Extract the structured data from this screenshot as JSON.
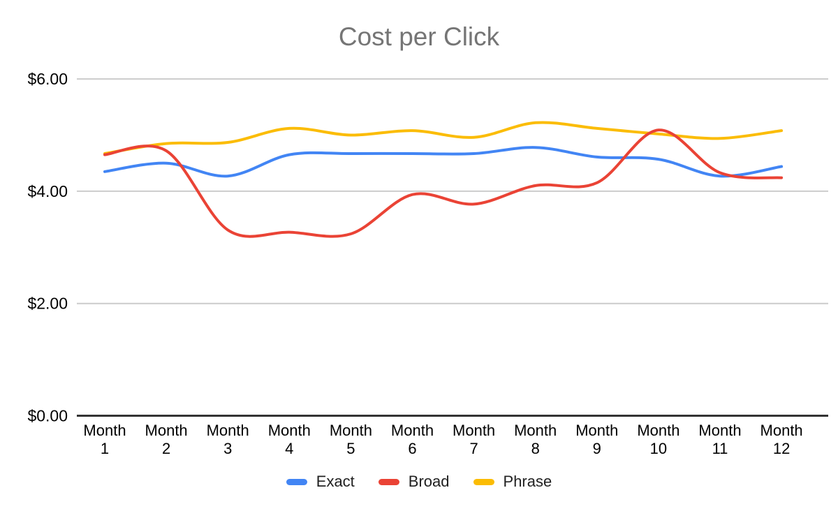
{
  "chart_data": {
    "type": "line",
    "title": "Cost per Click",
    "title_color": "#757575",
    "xlabel": "",
    "ylabel": "",
    "ylim": [
      0,
      6
    ],
    "grid": true,
    "smooth": true,
    "legend_position": "bottom",
    "categories": [
      "Month 1",
      "Month 2",
      "Month 3",
      "Month 4",
      "Month 5",
      "Month 6",
      "Month 7",
      "Month 8",
      "Month 9",
      "Month 10",
      "Month 11",
      "Month 12"
    ],
    "y_ticks": [
      {
        "label": "$0.00",
        "value": 0
      },
      {
        "label": "$2.00",
        "value": 2
      },
      {
        "label": "$4.00",
        "value": 4
      },
      {
        "label": "$6.00",
        "value": 6
      }
    ],
    "series": [
      {
        "name": "Exact",
        "color": "#4285F4",
        "values": [
          4.35,
          4.5,
          4.27,
          4.65,
          4.67,
          4.67,
          4.67,
          4.78,
          4.61,
          4.57,
          4.27,
          4.44
        ]
      },
      {
        "name": "Broad",
        "color": "#EA4335",
        "values": [
          4.65,
          4.72,
          3.31,
          3.27,
          3.24,
          3.94,
          3.77,
          4.1,
          4.15,
          5.09,
          4.33,
          4.24
        ]
      },
      {
        "name": "Phrase",
        "color": "#FBBC04",
        "values": [
          4.67,
          4.85,
          4.87,
          5.12,
          5.0,
          5.08,
          4.96,
          5.22,
          5.12,
          5.02,
          4.94,
          5.08
        ]
      }
    ]
  }
}
